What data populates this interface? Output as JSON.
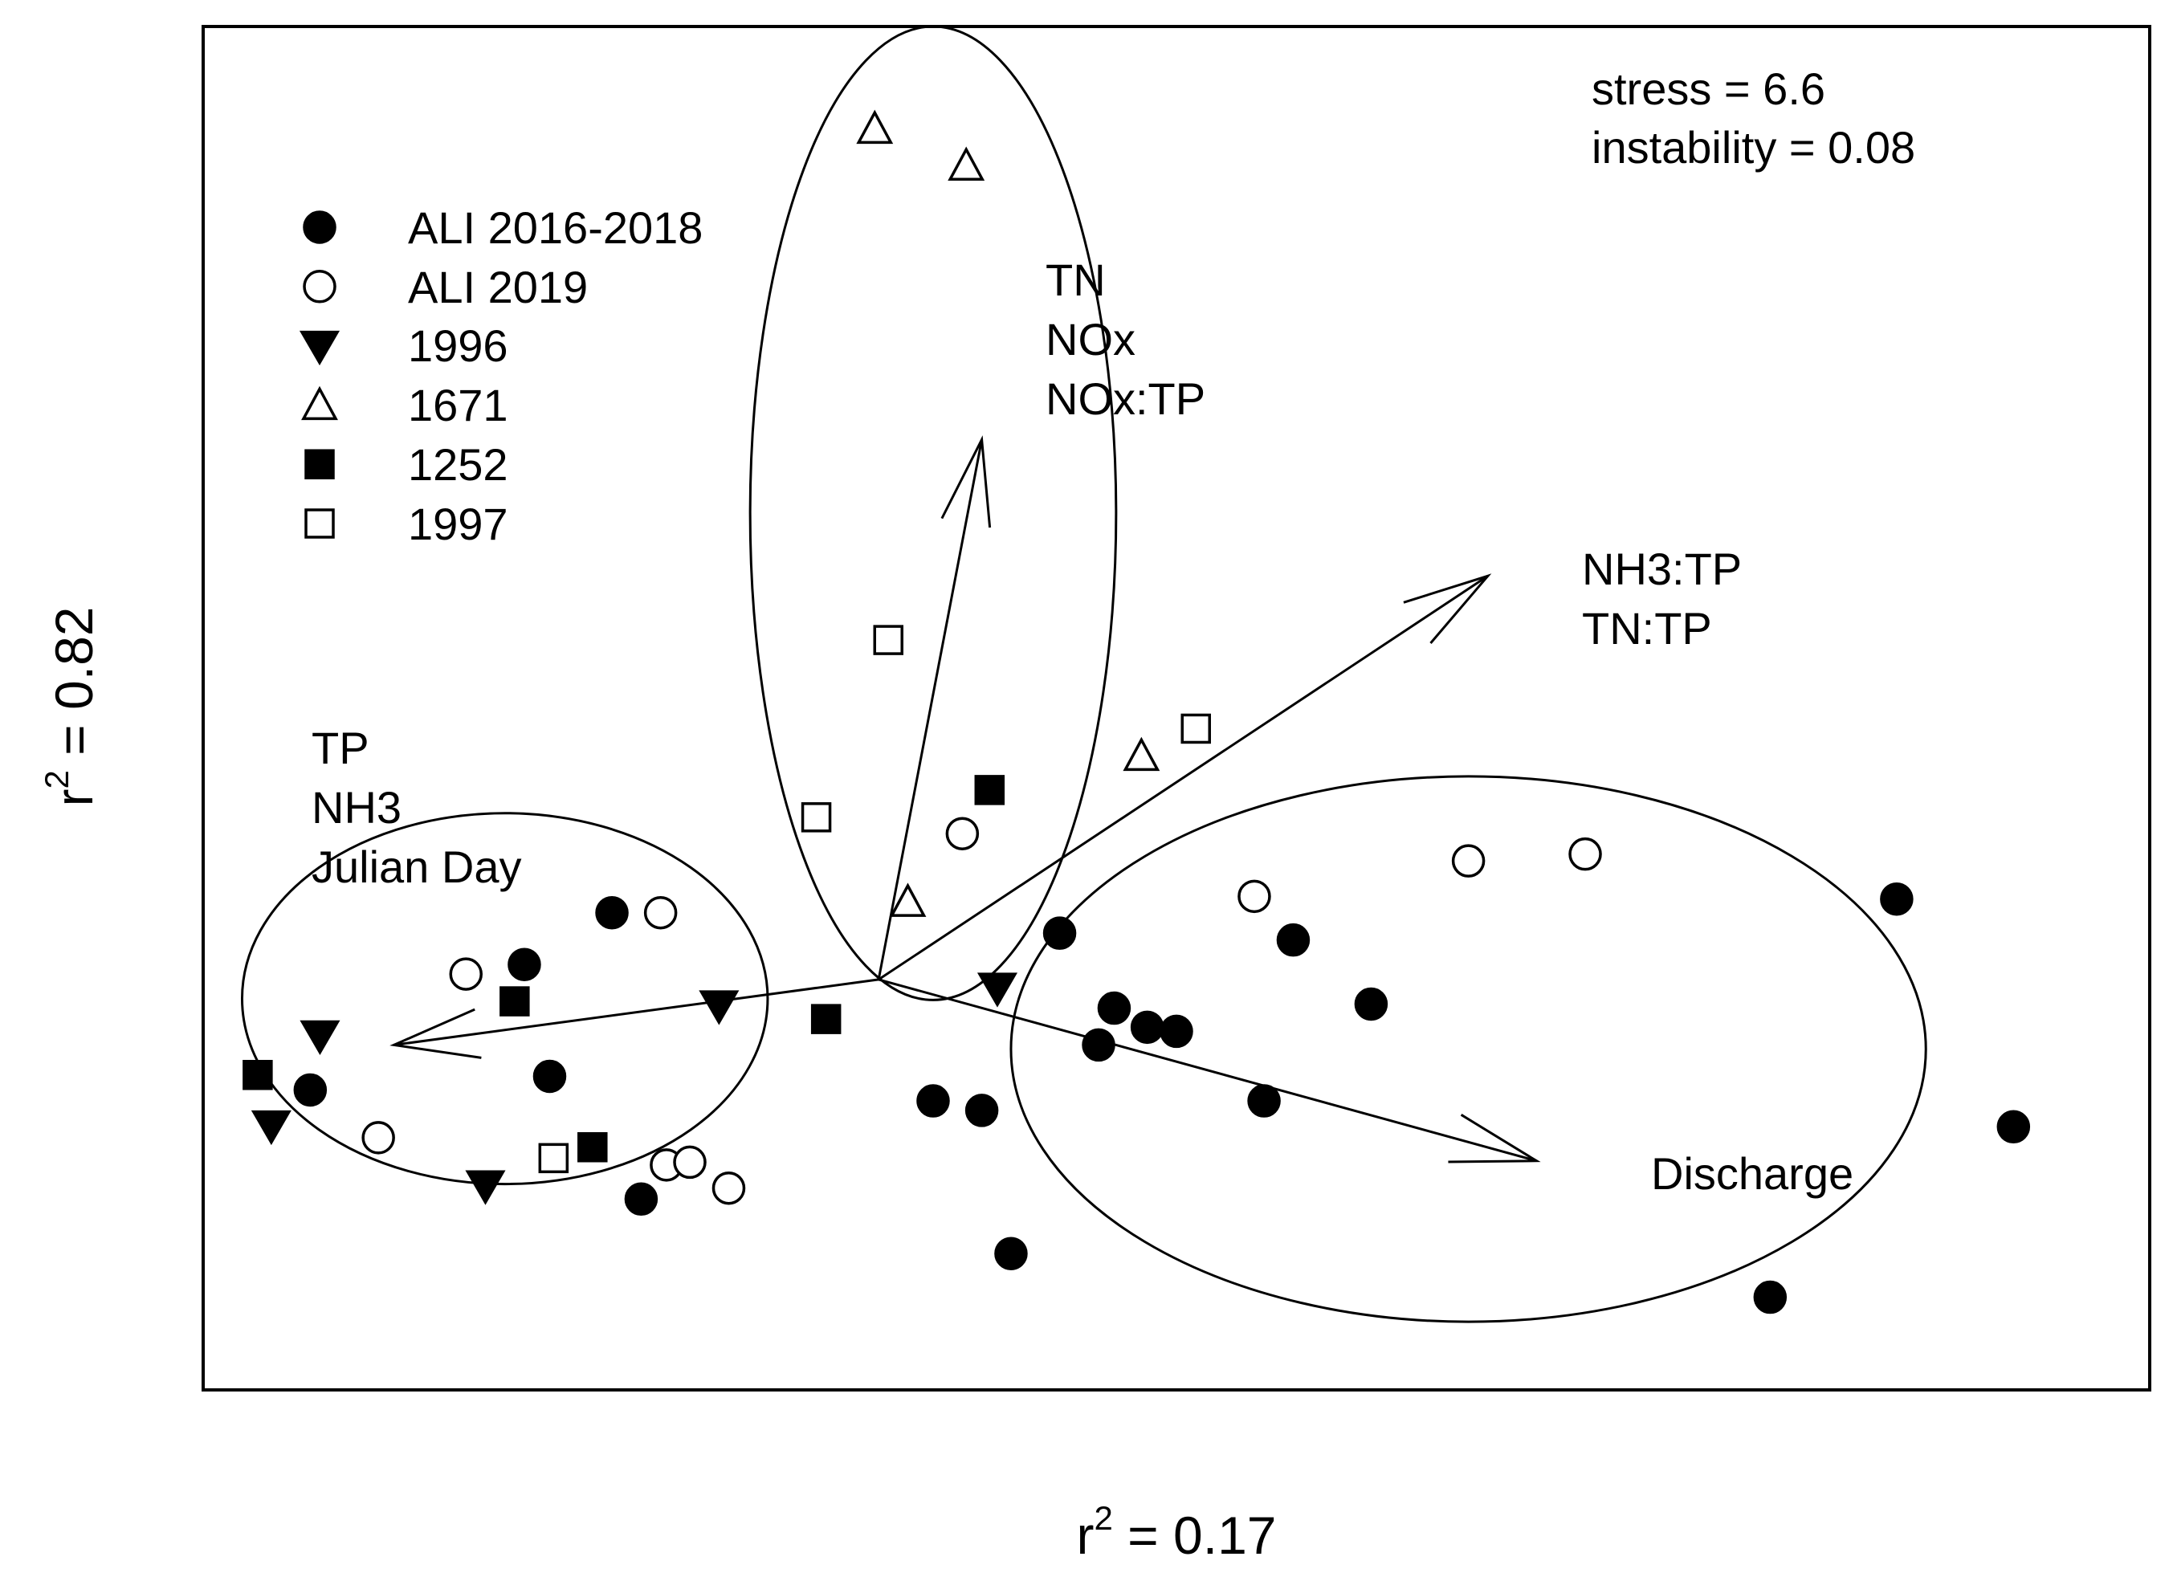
{
  "chart_data": {
    "type": "scatter",
    "subtype": "NMDS ordination",
    "title": "",
    "xlabel": {
      "base": "r",
      "sup": "2",
      "rest": " = 0.17"
    },
    "ylabel": {
      "base": "r",
      "sup": "2",
      "rest": " = 0.82"
    },
    "xlim": [
      0,
      100
    ],
    "ylim": [
      0,
      100
    ],
    "axes_visible": false,
    "grid": false,
    "stats": [
      "stress = 6.6",
      "instability = 0.08"
    ],
    "legend": {
      "placement": "top-left",
      "entries": [
        {
          "key": "ali1618",
          "label": "ALI 2016-2018",
          "marker": "circle",
          "filled": true
        },
        {
          "key": "ali19",
          "label": "ALI 2019",
          "marker": "circle",
          "filled": false
        },
        {
          "key": "s1996",
          "label": "1996",
          "marker": "triangle-down",
          "filled": true
        },
        {
          "key": "s1671",
          "label": "1671",
          "marker": "triangle-up",
          "filled": false
        },
        {
          "key": "s1252",
          "label": "1252",
          "marker": "square",
          "filled": true
        },
        {
          "key": "s1997",
          "label": "1997",
          "marker": "square",
          "filled": false
        }
      ]
    },
    "series": [
      {
        "key": "ali1618",
        "name": "ALI 2016-2018",
        "points": [
          [
            5.5,
            22
          ],
          [
            16.5,
            31.2
          ],
          [
            17.8,
            23
          ],
          [
            21,
            35
          ],
          [
            22.5,
            14
          ],
          [
            37.5,
            21.2
          ],
          [
            40,
            20.5
          ],
          [
            41.5,
            10
          ],
          [
            44,
            33.5
          ],
          [
            46,
            25.3
          ],
          [
            46.8,
            28
          ],
          [
            48.5,
            26.6
          ],
          [
            50,
            26.3
          ],
          [
            54.5,
            21.2
          ],
          [
            56,
            33
          ],
          [
            60,
            28.3
          ],
          [
            87,
            36
          ],
          [
            93,
            19.3
          ],
          [
            80.5,
            6.8
          ]
        ]
      },
      {
        "key": "ali19",
        "name": "ALI 2019",
        "points": [
          [
            9,
            18.5
          ],
          [
            13.5,
            30.5
          ],
          [
            23.5,
            35
          ],
          [
            23.8,
            16.5
          ],
          [
            25,
            16.7
          ],
          [
            27,
            14.8
          ],
          [
            39,
            40.8
          ],
          [
            54,
            36.2
          ],
          [
            65,
            38.8
          ],
          [
            71,
            39.3
          ]
        ]
      },
      {
        "key": "s1996",
        "name": "1996",
        "points": [
          [
            6,
            26
          ],
          [
            3.5,
            19.4
          ],
          [
            14.5,
            15
          ],
          [
            26.5,
            28.2
          ],
          [
            40.8,
            29.5
          ]
        ]
      },
      {
        "key": "s1671",
        "name": "1671",
        "points": [
          [
            34.5,
            92.5
          ],
          [
            39.2,
            89.8
          ],
          [
            48.2,
            46.5
          ],
          [
            36.2,
            35.8
          ]
        ]
      },
      {
        "key": "s1252",
        "name": "1252",
        "points": [
          [
            2.8,
            23.1
          ],
          [
            16,
            28.5
          ],
          [
            20,
            17.8
          ],
          [
            32,
            27.2
          ],
          [
            40.4,
            44
          ]
        ]
      },
      {
        "key": "s1997",
        "name": "1997",
        "points": [
          [
            35.2,
            55
          ],
          [
            31.5,
            42
          ],
          [
            18,
            17
          ],
          [
            51,
            48.5
          ]
        ]
      }
    ],
    "vectors": [
      {
        "label_lines": [
          "TN",
          "NOx",
          "NOx:TP"
        ],
        "from": [
          34.7,
          30.1
        ],
        "to": [
          40,
          69.7
        ]
      },
      {
        "label_lines": [
          "NH3:TP",
          "TN:TP"
        ],
        "from": [
          34.7,
          30.1
        ],
        "to": [
          66,
          59.7
        ]
      },
      {
        "label_lines": [
          "Discharge"
        ],
        "from": [
          34.7,
          30.1
        ],
        "to": [
          68.5,
          16.8
        ]
      },
      {
        "label_lines": [
          "TP",
          "NH3",
          "Julian Day"
        ],
        "from": [
          34.7,
          30.1
        ],
        "to": [
          9.8,
          25.3
        ]
      }
    ],
    "hulls": [
      {
        "name": "upper-group",
        "center": [
          37.5,
          64.3
        ],
        "radii": [
          9.4,
          35.7
        ]
      },
      {
        "name": "left-group",
        "center": [
          15.5,
          28.7
        ],
        "radii": [
          13.5,
          13.6
        ]
      },
      {
        "name": "right-group",
        "center": [
          65,
          25
        ],
        "radii": [
          23.5,
          20
        ]
      }
    ]
  }
}
